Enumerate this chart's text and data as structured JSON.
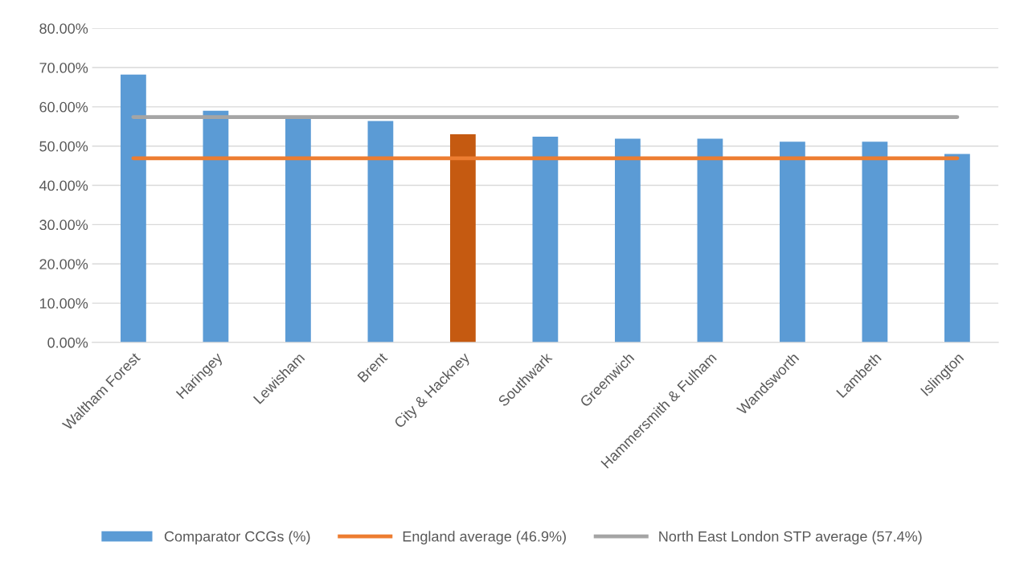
{
  "chart_data": {
    "type": "bar",
    "categories": [
      "Waltham Forest",
      "Haringey",
      "Lewisham",
      "Brent",
      "City & Hackney",
      "Southwark",
      "Greenwich",
      "Hammersmith & Fulham",
      "Wandsworth",
      "Lambeth",
      "Islington"
    ],
    "series": [
      {
        "name": "Comparator CCGs (%)",
        "color": "#5b9bd5",
        "colors": [
          "#5b9bd5",
          "#5b9bd5",
          "#5b9bd5",
          "#5b9bd5",
          "#c55a11",
          "#5b9bd5",
          "#5b9bd5",
          "#5b9bd5",
          "#5b9bd5",
          "#5b9bd5",
          "#5b9bd5"
        ],
        "values": [
          68.2,
          59.0,
          57.2,
          56.4,
          53.0,
          52.4,
          51.9,
          51.9,
          51.1,
          51.1,
          48.0
        ]
      },
      {
        "name": "England average (46.9%)",
        "type": "line",
        "color": "#ed7d31",
        "values": [
          46.9,
          46.9,
          46.9,
          46.9,
          46.9,
          46.9,
          46.9,
          46.9,
          46.9,
          46.9,
          46.9
        ]
      },
      {
        "name": "North East London STP average (57.4%)",
        "type": "line",
        "color": "#a5a5a5",
        "values": [
          57.4,
          57.4,
          57.4,
          57.4,
          57.4,
          57.4,
          57.4,
          57.4,
          57.4,
          57.4,
          57.4
        ]
      }
    ],
    "ylim": [
      0,
      80
    ],
    "yticks": [
      {
        "value": 0,
        "label": "0.00%"
      },
      {
        "value": 10,
        "label": "10.00%"
      },
      {
        "value": 20,
        "label": "20.00%"
      },
      {
        "value": 30,
        "label": "30.00%"
      },
      {
        "value": 40,
        "label": "40.00%"
      },
      {
        "value": 50,
        "label": "50.00%"
      },
      {
        "value": 60,
        "label": "60.00%"
      },
      {
        "value": 70,
        "label": "70.00%"
      },
      {
        "value": 80,
        "label": "80.00%"
      }
    ],
    "grid": "y",
    "legend": "bottom"
  }
}
